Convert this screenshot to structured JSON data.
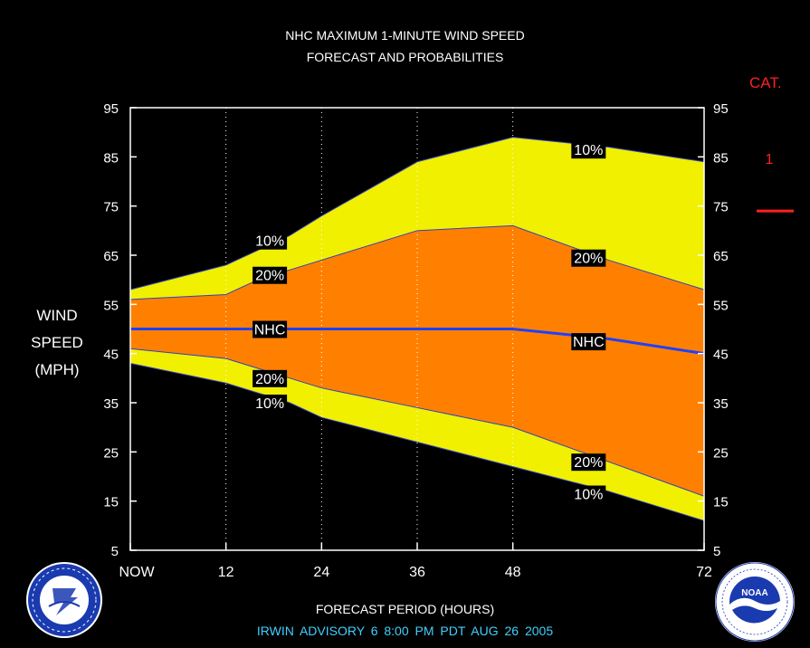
{
  "title_line1": "NHC MAXIMUM 1-MINUTE WIND SPEED",
  "title_line2": "FORECAST AND PROBABILITIES",
  "ylabel": [
    "WIND",
    "SPEED",
    "(MPH)"
  ],
  "category": {
    "label": "CAT.",
    "levels": [
      {
        "name": "1",
        "value": 74
      }
    ],
    "color": "#ff2020"
  },
  "xlabel": "FORECAST PERIOD (HOURS)",
  "advisory": "IRWIN   ADVISORY  6  8:00  PM  PDT  AUG 26  2005",
  "logos": {
    "left": "nws-logo",
    "right": "noaa-logo",
    "right_text": "NOAA"
  },
  "colors": {
    "bg": "#000000",
    "yellow": "#f0f000",
    "orange": "#ff8000",
    "nhc_line": "#2040ff",
    "grid": "#ffffff"
  },
  "chart_data": {
    "type": "area",
    "x": [
      0,
      12,
      16,
      20,
      24,
      36,
      48,
      60,
      72
    ],
    "x_ticks": [
      0,
      12,
      24,
      36,
      48,
      72
    ],
    "x_tick_labels": [
      "NOW",
      "12",
      "24",
      "36",
      "48",
      "72"
    ],
    "xlim": [
      0,
      72
    ],
    "ylim": [
      5,
      95
    ],
    "y_ticks": [
      5,
      15,
      25,
      35,
      45,
      55,
      65,
      75,
      85,
      95
    ],
    "grid_x": [
      12,
      24,
      36,
      48
    ],
    "series": [
      {
        "name": "10%",
        "role": "upper",
        "x": [
          0,
          12,
          16,
          20,
          24,
          36,
          48,
          60,
          72
        ],
        "values": [
          58,
          63,
          66,
          69,
          73,
          84,
          89,
          87,
          84
        ]
      },
      {
        "name": "20%",
        "role": "upper",
        "x": [
          0,
          12,
          16,
          20,
          24,
          36,
          48,
          60,
          72
        ],
        "values": [
          56,
          57,
          60,
          62,
          64,
          70,
          71,
          64,
          58
        ]
      },
      {
        "name": "NHC",
        "role": "forecast",
        "x": [
          0,
          12,
          24,
          36,
          48,
          60,
          72
        ],
        "values": [
          50,
          50,
          50,
          50,
          50,
          48,
          45
        ]
      },
      {
        "name": "20%",
        "role": "lower",
        "x": [
          0,
          12,
          16,
          20,
          24,
          36,
          48,
          60,
          72
        ],
        "values": [
          46,
          44,
          42,
          40,
          38,
          34,
          30,
          23,
          16
        ]
      },
      {
        "name": "10%",
        "role": "lower",
        "x": [
          0,
          12,
          16,
          20,
          24,
          36,
          48,
          60,
          72
        ],
        "values": [
          43,
          39,
          37,
          35,
          32,
          27,
          22,
          17,
          11
        ]
      }
    ],
    "annotations": [
      {
        "text": "10%",
        "x": 17.5,
        "y": 68
      },
      {
        "text": "20%",
        "x": 17.5,
        "y": 61
      },
      {
        "text": "NHC",
        "x": 17.5,
        "y": 50
      },
      {
        "text": "20%",
        "x": 17.5,
        "y": 40
      },
      {
        "text": "10%",
        "x": 17.5,
        "y": 35
      },
      {
        "text": "10%",
        "x": 57.5,
        "y": 86.5
      },
      {
        "text": "20%",
        "x": 57.5,
        "y": 64.5
      },
      {
        "text": "NHC",
        "x": 57.5,
        "y": 47.5
      },
      {
        "text": "20%",
        "x": 57.5,
        "y": 23
      },
      {
        "text": "10%",
        "x": 57.5,
        "y": 16.5
      }
    ]
  }
}
